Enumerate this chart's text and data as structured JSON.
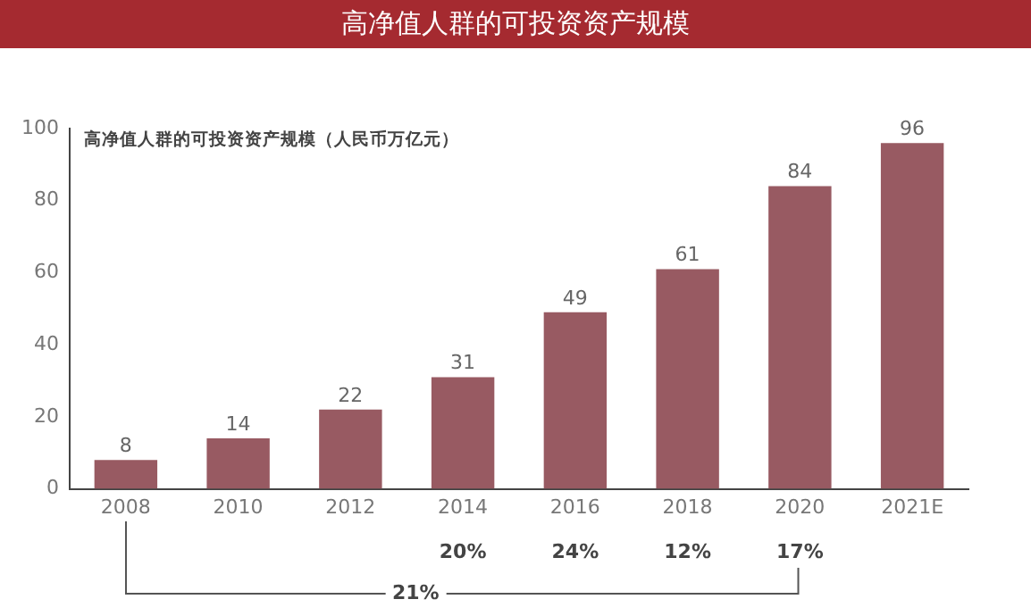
{
  "chart_data": {
    "type": "bar",
    "title": "高净值人群的可投资资产规模",
    "subtitle": "高净值人群的可投资资产规模（人民币万亿元）",
    "categories": [
      "2008",
      "2010",
      "2012",
      "2014",
      "2016",
      "2018",
      "2020",
      "2021E"
    ],
    "values": [
      8,
      14,
      22,
      31,
      49,
      61,
      84,
      96
    ],
    "color": "#985a62",
    "ylim": [
      0,
      100
    ],
    "yticks": [
      0,
      20,
      40,
      60,
      80,
      100
    ],
    "grid": false,
    "legend": false,
    "data_labels": true,
    "annotations": [
      "20%",
      "24%",
      "12%",
      "17%",
      "21%"
    ]
  }
}
